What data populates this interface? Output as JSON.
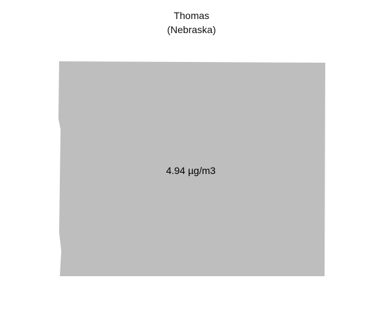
{
  "map": {
    "title": "Thomas",
    "subtitle": "(Nebraska)",
    "region_value": "4.94 µg/m3",
    "fill_color": "#bebebe",
    "background_color": "#ffffff"
  }
}
